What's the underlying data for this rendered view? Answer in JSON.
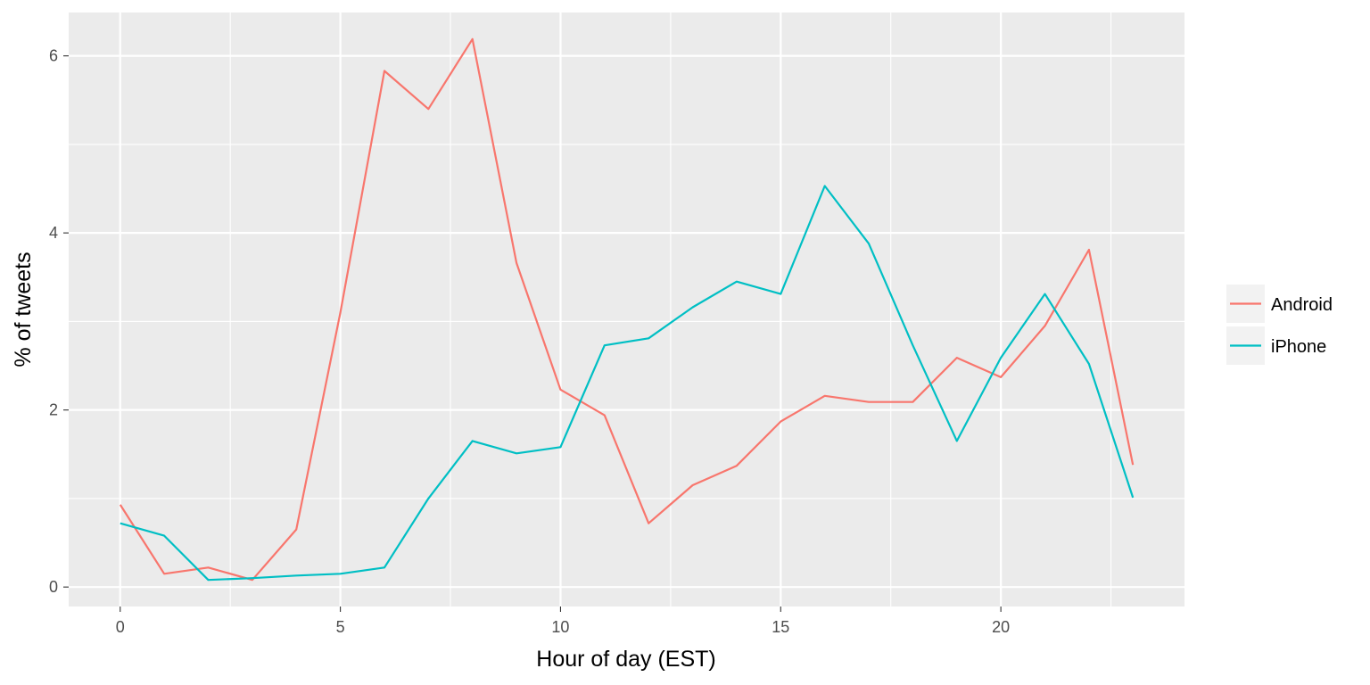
{
  "chart_data": {
    "type": "line",
    "xlabel": "Hour of day (EST)",
    "ylabel": "% of tweets",
    "xlim": [
      -1.17,
      24.17
    ],
    "ylim": [
      -0.22,
      6.49
    ],
    "x_ticks": [
      0,
      5,
      10,
      15,
      20
    ],
    "y_ticks": [
      0,
      2,
      4,
      6
    ],
    "grid": true,
    "legend_position": "right",
    "x": [
      0,
      1,
      2,
      3,
      4,
      5,
      6,
      7,
      8,
      9,
      10,
      11,
      12,
      13,
      14,
      15,
      16,
      17,
      18,
      19,
      20,
      21,
      22,
      23
    ],
    "series": [
      {
        "name": "Android",
        "color": "#F8766D",
        "values": [
          0.93,
          0.15,
          0.22,
          0.08,
          0.65,
          3.1,
          5.83,
          5.4,
          6.19,
          3.66,
          2.23,
          1.94,
          0.72,
          1.15,
          1.37,
          1.87,
          2.16,
          2.09,
          2.09,
          2.59,
          2.37,
          2.95,
          3.81,
          1.38
        ]
      },
      {
        "name": "iPhone",
        "color": "#00BFC4",
        "values": [
          0.72,
          0.58,
          0.08,
          0.1,
          0.13,
          0.15,
          0.22,
          1.0,
          1.65,
          1.51,
          1.58,
          2.73,
          2.81,
          3.16,
          3.45,
          3.31,
          4.53,
          3.88,
          2.73,
          1.65,
          2.59,
          3.31,
          2.52,
          1.01
        ]
      }
    ]
  }
}
